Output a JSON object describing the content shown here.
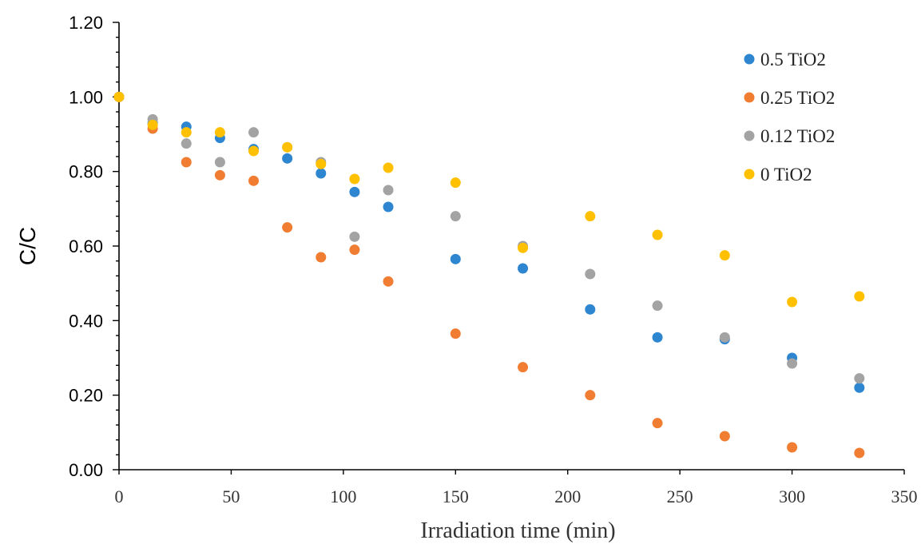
{
  "chart_data": {
    "type": "scatter",
    "xlabel": "Irradiation  time (min)",
    "ylabel": "C/C",
    "xlim": [
      0,
      350
    ],
    "ylim": [
      0,
      1.2
    ],
    "x_ticks": [
      "0",
      "50",
      "100",
      "150",
      "200",
      "250",
      "300",
      "350"
    ],
    "y_ticks": [
      "0.00",
      "0.20",
      "0.40",
      "0.60",
      "0.80",
      "1.00",
      "1.20"
    ],
    "grid": false,
    "legend_position": "top-right",
    "series": [
      {
        "name": "0.5 TiO2",
        "color": "#2E86D1",
        "points": [
          [
            0,
            1.0
          ],
          [
            15,
            0.93
          ],
          [
            30,
            0.92
          ],
          [
            45,
            0.89
          ],
          [
            60,
            0.86
          ],
          [
            75,
            0.835
          ],
          [
            90,
            0.795
          ],
          [
            105,
            0.745
          ],
          [
            120,
            0.705
          ],
          [
            150,
            0.565
          ],
          [
            180,
            0.54
          ],
          [
            210,
            0.43
          ],
          [
            240,
            0.355
          ],
          [
            270,
            0.35
          ],
          [
            300,
            0.3
          ],
          [
            330,
            0.22
          ]
        ]
      },
      {
        "name": "0.25 TiO2",
        "color": "#F07D32",
        "points": [
          [
            0,
            1.0
          ],
          [
            15,
            0.915
          ],
          [
            30,
            0.825
          ],
          [
            45,
            0.79
          ],
          [
            60,
            0.775
          ],
          [
            75,
            0.65
          ],
          [
            90,
            0.57
          ],
          [
            105,
            0.59
          ],
          [
            120,
            0.505
          ],
          [
            150,
            0.365
          ],
          [
            180,
            0.275
          ],
          [
            210,
            0.2
          ],
          [
            240,
            0.125
          ],
          [
            270,
            0.09
          ],
          [
            300,
            0.06
          ],
          [
            330,
            0.045
          ]
        ]
      },
      {
        "name": "0.12 TiO2",
        "color": "#A3A3A3",
        "points": [
          [
            0,
            1.0
          ],
          [
            15,
            0.94
          ],
          [
            30,
            0.875
          ],
          [
            45,
            0.825
          ],
          [
            60,
            0.905
          ],
          [
            75,
            0.865
          ],
          [
            90,
            0.825
          ],
          [
            105,
            0.625
          ],
          [
            120,
            0.75
          ],
          [
            150,
            0.68
          ],
          [
            180,
            0.6
          ],
          [
            210,
            0.525
          ],
          [
            240,
            0.44
          ],
          [
            270,
            0.355
          ],
          [
            300,
            0.285
          ],
          [
            330,
            0.245
          ]
        ]
      },
      {
        "name": "0 TiO2",
        "color": "#FFC000",
        "points": [
          [
            0,
            1.0
          ],
          [
            15,
            0.925
          ],
          [
            30,
            0.905
          ],
          [
            45,
            0.905
          ],
          [
            60,
            0.855
          ],
          [
            75,
            0.865
          ],
          [
            90,
            0.82
          ],
          [
            105,
            0.78
          ],
          [
            120,
            0.81
          ],
          [
            150,
            0.77
          ],
          [
            180,
            0.595
          ],
          [
            210,
            0.68
          ],
          [
            240,
            0.63
          ],
          [
            270,
            0.575
          ],
          [
            300,
            0.45
          ],
          [
            330,
            0.465
          ]
        ]
      }
    ]
  }
}
